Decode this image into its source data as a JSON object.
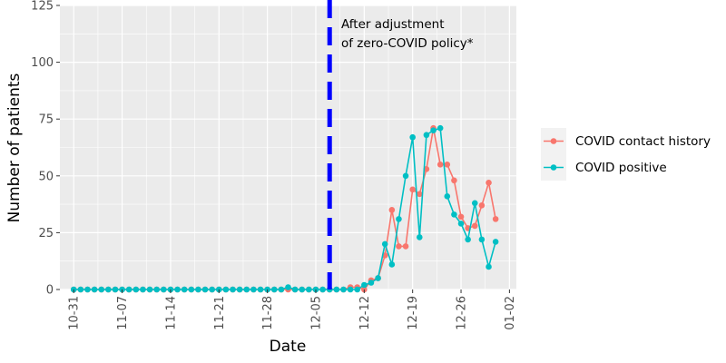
{
  "chart_data": {
    "type": "line",
    "xlabel": "Date",
    "ylabel": "Number of patients",
    "ylim": [
      0,
      125
    ],
    "yticks": [
      "0",
      "25",
      "50",
      "75",
      "100",
      "125"
    ],
    "x_tick_labels": [
      "10-31",
      "11-07",
      "11-14",
      "11-21",
      "11-28",
      "12-05",
      "12-12",
      "12-19",
      "12-26",
      "01-02"
    ],
    "x_tick_dates": [
      "2022-10-31",
      "2022-11-07",
      "2022-11-14",
      "2022-11-21",
      "2022-11-28",
      "2022-12-05",
      "2022-12-12",
      "2022-12-19",
      "2022-12-26",
      "2023-01-02"
    ],
    "xlim": [
      "2022-10-29",
      "2023-01-03"
    ],
    "grid": true,
    "background": "#ebebeb",
    "legend_position": "right",
    "vline": {
      "date": "2022-12-07",
      "color": "#0000ff",
      "style": "dashed",
      "annotation_line1": "After adjustment",
      "annotation_line2": "of zero-COVID policy*"
    },
    "x": [
      "2022-10-31",
      "2022-11-01",
      "2022-11-02",
      "2022-11-03",
      "2022-11-04",
      "2022-11-05",
      "2022-11-06",
      "2022-11-07",
      "2022-11-08",
      "2022-11-09",
      "2022-11-10",
      "2022-11-11",
      "2022-11-12",
      "2022-11-13",
      "2022-11-14",
      "2022-11-15",
      "2022-11-16",
      "2022-11-17",
      "2022-11-18",
      "2022-11-19",
      "2022-11-20",
      "2022-11-21",
      "2022-11-22",
      "2022-11-23",
      "2022-11-24",
      "2022-11-25",
      "2022-11-26",
      "2022-11-27",
      "2022-11-28",
      "2022-11-29",
      "2022-11-30",
      "2022-12-01",
      "2022-12-02",
      "2022-12-03",
      "2022-12-04",
      "2022-12-05",
      "2022-12-06",
      "2022-12-07",
      "2022-12-08",
      "2022-12-09",
      "2022-12-10",
      "2022-12-11",
      "2022-12-12",
      "2022-12-13",
      "2022-12-14",
      "2022-12-15",
      "2022-12-16",
      "2022-12-17",
      "2022-12-18",
      "2022-12-19",
      "2022-12-20",
      "2022-12-21",
      "2022-12-22",
      "2022-12-23",
      "2022-12-24",
      "2022-12-25",
      "2022-12-26",
      "2022-12-27",
      "2022-12-28",
      "2022-12-29",
      "2022-12-30",
      "2022-12-31",
      "2023-01-01"
    ],
    "series": [
      {
        "name": "COVID contact history",
        "color": "#f8766d",
        "values": [
          0,
          0,
          0,
          0,
          0,
          0,
          0,
          0,
          0,
          0,
          0,
          0,
          0,
          0,
          0,
          0,
          0,
          0,
          0,
          0,
          0,
          0,
          0,
          0,
          0,
          0,
          0,
          0,
          0,
          0,
          0,
          0,
          0,
          0,
          0,
          0,
          0,
          0,
          0,
          0,
          1,
          1,
          0,
          4,
          5,
          15,
          35,
          19,
          19,
          44,
          42,
          53,
          71,
          55,
          55,
          48,
          32,
          27,
          28,
          37,
          47,
          31,
          null
        ]
      },
      {
        "name": "COVID positive",
        "color": "#00bfc4",
        "values": [
          0,
          0,
          0,
          0,
          0,
          0,
          0,
          0,
          0,
          0,
          0,
          0,
          0,
          0,
          0,
          0,
          0,
          0,
          0,
          0,
          0,
          0,
          0,
          0,
          0,
          0,
          0,
          0,
          0,
          0,
          0,
          1,
          0,
          0,
          0,
          0,
          0,
          0,
          0,
          0,
          0,
          0,
          2,
          3,
          5,
          20,
          11,
          31,
          50,
          67,
          23,
          68,
          70,
          71,
          41,
          33,
          29,
          22,
          38,
          22,
          10,
          21,
          null
        ]
      }
    ]
  }
}
